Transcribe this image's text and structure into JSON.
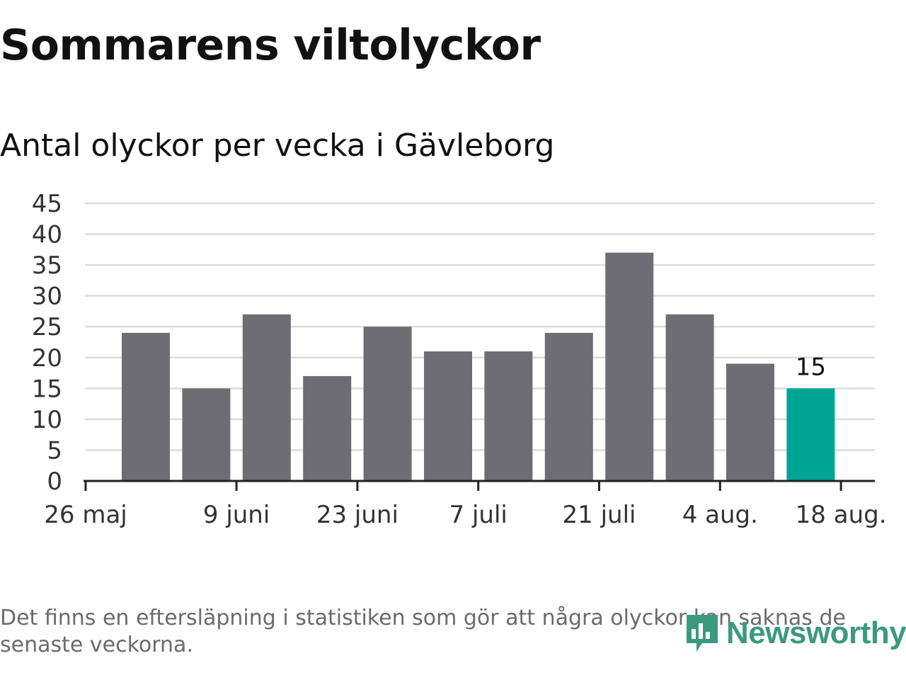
{
  "chart_data": {
    "type": "bar",
    "title": "Sommarens viltolyckor",
    "subtitle": "Antal olyckor per vecka i Gävleborg",
    "x_tick_labels": [
      "26 maj",
      "9 juni",
      "23 juni",
      "7 juli",
      "21 juli",
      "4 aug.",
      "18 aug."
    ],
    "values": [
      24,
      15,
      27,
      17,
      25,
      21,
      21,
      24,
      37,
      27,
      19,
      15
    ],
    "highlight_index": 11,
    "highlight_label": "15",
    "y_ticks": [
      0,
      5,
      10,
      15,
      20,
      25,
      30,
      35,
      40,
      45
    ],
    "ylim": [
      0,
      45
    ],
    "grid": true,
    "colors": {
      "bar": "#6e6d73",
      "highlight": "#00a595",
      "grid": "#dcdcdc",
      "axis": "#222222"
    }
  },
  "footnote": "Det finns en eftersläpning i statistiken som gör att några olyckor kan saknas de senaste veckorna.",
  "logo": {
    "text": "Newsworthy",
    "icon": "newsworthy-chart-icon",
    "color": "#3b9a7d"
  }
}
